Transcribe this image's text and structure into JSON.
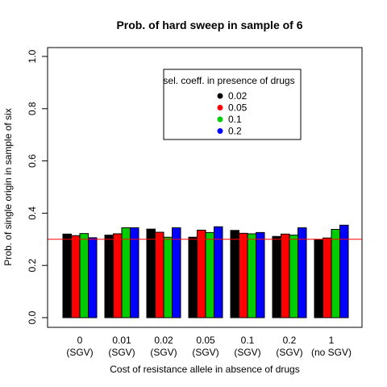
{
  "chart_data": {
    "type": "bar",
    "title": "Prob. of hard sweep in sample of 6",
    "xlabel": "Cost of resistance allele in absence of drugs",
    "ylabel": "Prob. of single origin in sample of six",
    "ylim": [
      0,
      1
    ],
    "yticks": [
      "0.0",
      "0.2",
      "0.4",
      "0.6",
      "0.8",
      "1.0"
    ],
    "categories": [
      {
        "line1": "0",
        "line2": "(SGV)"
      },
      {
        "line1": "0.01",
        "line2": "(SGV)"
      },
      {
        "line1": "0.02",
        "line2": "(SGV)"
      },
      {
        "line1": "0.05",
        "line2": "(SGV)"
      },
      {
        "line1": "0.1",
        "line2": "(SGV)"
      },
      {
        "line1": "0.2",
        "line2": "(SGV)"
      },
      {
        "line1": "1",
        "line2": "(no SGV)"
      }
    ],
    "series": [
      {
        "name": "0.02",
        "color": "#000000",
        "values": [
          0.32,
          0.316,
          0.339,
          0.308,
          0.334,
          0.311,
          0.298
        ]
      },
      {
        "name": "0.05",
        "color": "#ff0000",
        "values": [
          0.314,
          0.321,
          0.327,
          0.335,
          0.323,
          0.32,
          0.305
        ]
      },
      {
        "name": "0.1",
        "color": "#00cd00",
        "values": [
          0.322,
          0.344,
          0.308,
          0.326,
          0.321,
          0.316,
          0.338
        ]
      },
      {
        "name": "0.2",
        "color": "#0000ff",
        "values": [
          0.306,
          0.344,
          0.344,
          0.348,
          0.326,
          0.344,
          0.354
        ]
      }
    ],
    "reference_line": {
      "value": 0.3,
      "color": "#ff0000"
    },
    "legend_title": "sel. coeff. in presence of drugs",
    "legend_position": "top-right",
    "grid": false
  }
}
